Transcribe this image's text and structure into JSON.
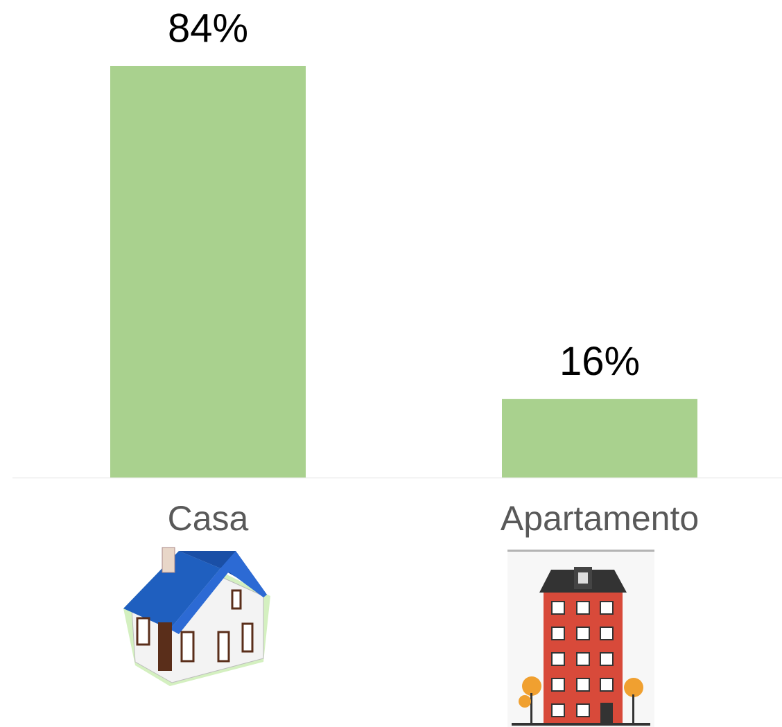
{
  "chart_data": {
    "type": "bar",
    "categories": [
      "Casa",
      "Apartamento"
    ],
    "values": [
      84,
      16
    ],
    "value_labels": [
      "84%",
      "16%"
    ],
    "color": "#a9d18e"
  }
}
